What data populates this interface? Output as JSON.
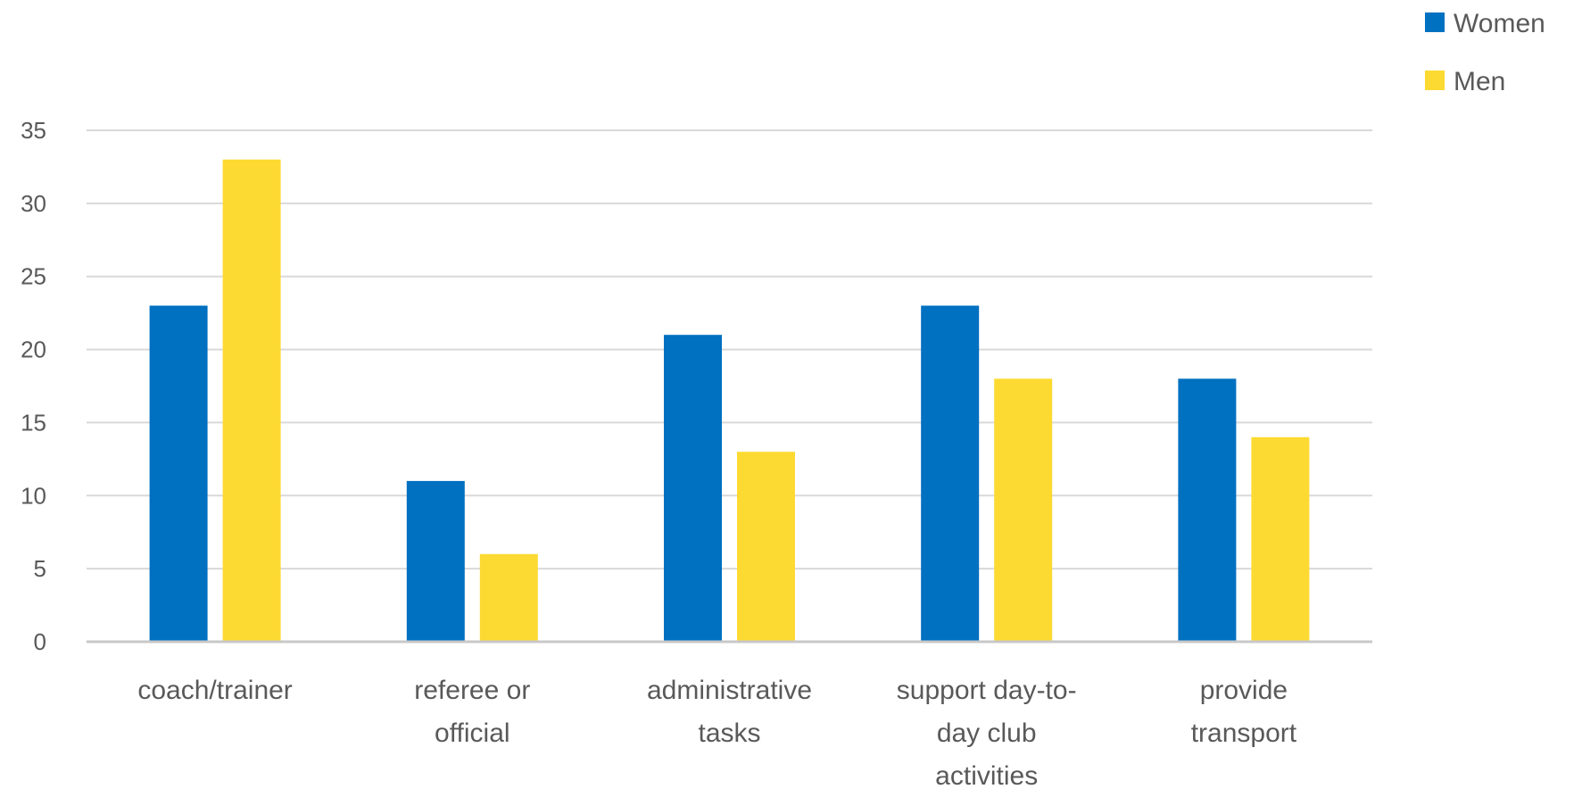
{
  "chart_data": {
    "type": "bar",
    "title": "",
    "xlabel": "",
    "ylabel": "",
    "ylim": [
      0,
      35
    ],
    "yticks": [
      0,
      5,
      10,
      15,
      20,
      25,
      30,
      35
    ],
    "grid": true,
    "legend_position": "top-right",
    "categories": [
      [
        "coach/trainer"
      ],
      [
        "referee or",
        "official"
      ],
      [
        "administrative",
        "tasks"
      ],
      [
        "support day-to-",
        "day club",
        "activities"
      ],
      [
        "provide",
        "transport"
      ]
    ],
    "series": [
      {
        "name": "Women",
        "color": "#0070C0",
        "values": [
          23,
          11,
          21,
          23,
          18
        ]
      },
      {
        "name": "Men",
        "color": "#FDDA32",
        "values": [
          33,
          6,
          13,
          18,
          14
        ]
      }
    ]
  }
}
